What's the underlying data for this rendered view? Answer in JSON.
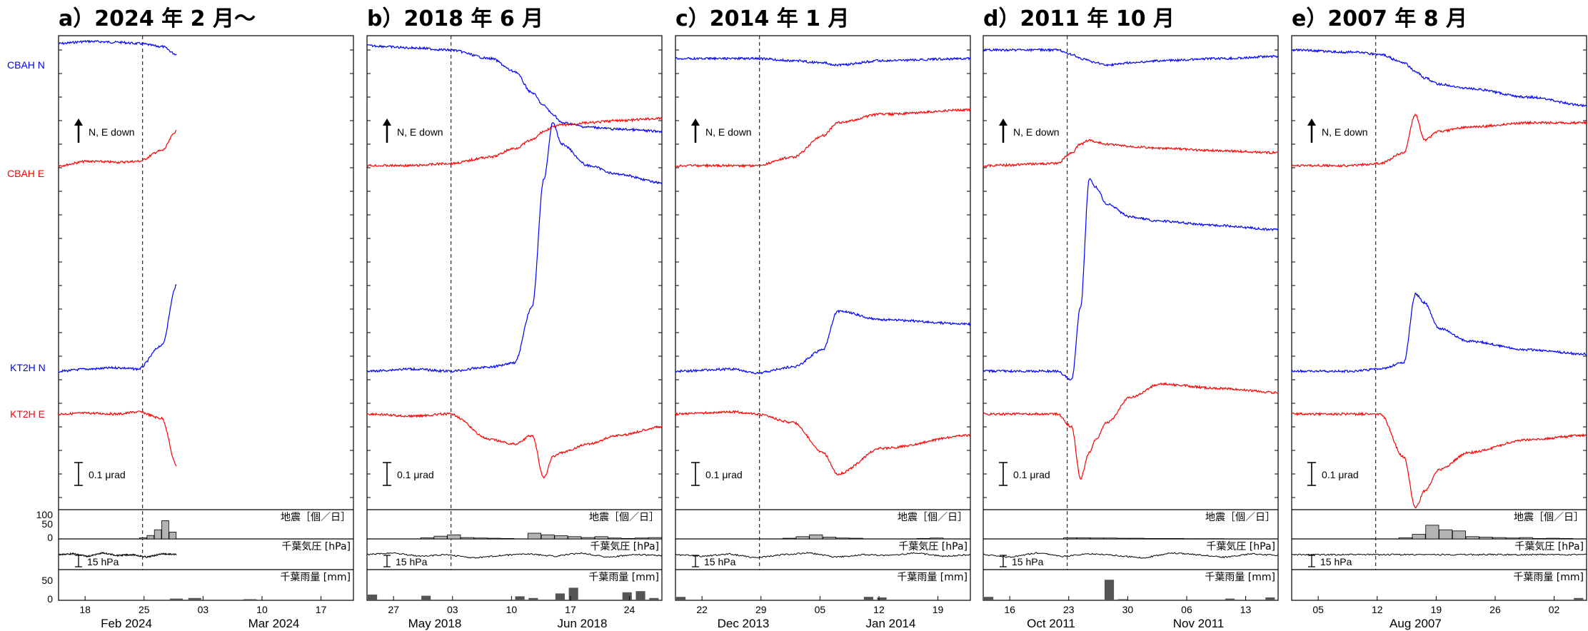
{
  "colors": {
    "north": "#0000ff",
    "east": "#ff0000",
    "bar_eq": "#b3b3b3",
    "bar_rain": "#555555"
  },
  "side_labels": {
    "cbah_n": "CBAH N",
    "cbah_e": "CBAH E",
    "kt2h_n": "KT2H N",
    "kt2h_e": "KT2H E"
  },
  "common": {
    "arrow_label": "N, E down",
    "scale_label": "0.1 μrad",
    "pressure_scale": "15 hPa",
    "eq_title": "地震［個／日］",
    "pressure_title": "千葉気圧 [hPa]",
    "rain_title": "千葉雨量 [mm]",
    "eq_axis": [
      "100",
      "50",
      "0"
    ],
    "rain_axis": [
      "50",
      "0"
    ]
  },
  "chart_data": [
    {
      "type": "line",
      "title": "a）2024 年 2 月～",
      "x": [
        0,
        0.1,
        0.2,
        0.27,
        0.35,
        0.4
      ],
      "day_ticks": [
        "18",
        "25",
        "03",
        "10",
        "17"
      ],
      "month_labels": [
        "Feb 2024",
        "Mar 2024"
      ],
      "onset": 0.285,
      "series": [
        {
          "name": "CBAH N",
          "values": [
            0.45,
            0.5,
            0.48,
            0.45,
            0.38,
            0.2
          ]
        },
        {
          "name": "CBAH E",
          "values": [
            0.0,
            0.1,
            0.08,
            0.1,
            0.35,
            0.8
          ]
        },
        {
          "name": "KT2H N",
          "values": [
            0.0,
            0.05,
            0.08,
            0.05,
            0.6,
            2.0
          ]
        },
        {
          "name": "KT2H E",
          "values": [
            0.0,
            0.02,
            0.0,
            0.05,
            -0.1,
            -1.2
          ]
        }
      ],
      "earthquakes": [
        0,
        0,
        0,
        0,
        0,
        0,
        0,
        0,
        0,
        0,
        0,
        5,
        15,
        40,
        80,
        30
      ],
      "pressure": [
        0.5,
        0.55,
        0.4,
        0.6,
        0.45,
        0.5,
        0.35,
        0.55,
        0.5
      ],
      "rain": [
        0,
        0,
        0,
        0,
        0,
        0,
        3,
        4,
        0,
        0,
        2,
        0,
        0,
        0,
        0,
        0
      ]
    },
    {
      "type": "line",
      "title": "b）2018 年 6 月",
      "x": [
        0,
        0.15,
        0.28,
        0.42,
        0.5,
        0.56,
        0.6,
        0.63,
        0.66,
        0.75,
        0.85,
        1.0
      ],
      "day_ticks": [
        "27",
        "03",
        "10",
        "17",
        "24"
      ],
      "month_labels": [
        "May 2018",
        "Jun 2018"
      ],
      "onset": 0.285,
      "series": [
        {
          "name": "CBAH N",
          "values": [
            0.4,
            0.35,
            0.3,
            0.1,
            -0.2,
            -0.7,
            -1.0,
            -1.2,
            -1.4,
            -1.5,
            -1.55,
            -1.6
          ]
        },
        {
          "name": "CBAH E",
          "values": [
            0.0,
            0.0,
            0.05,
            0.2,
            0.4,
            0.6,
            0.8,
            0.9,
            0.95,
            1.0,
            1.05,
            1.1
          ]
        },
        {
          "name": "KT2H N",
          "values": [
            0.0,
            0.05,
            0.0,
            0.1,
            0.2,
            1.5,
            4.5,
            5.8,
            5.3,
            4.8,
            4.6,
            4.4
          ]
        },
        {
          "name": "KT2H E",
          "values": [
            0.0,
            -0.05,
            0.0,
            -0.6,
            -0.7,
            -0.5,
            -1.5,
            -1.0,
            -0.9,
            -0.7,
            -0.5,
            -0.3
          ]
        }
      ],
      "earthquakes": [
        0,
        0,
        0,
        0,
        5,
        12,
        18,
        6,
        4,
        3,
        2,
        0,
        25,
        18,
        14,
        10,
        6,
        10,
        4,
        2,
        4,
        6
      ],
      "pressure": [
        0.5,
        0.6,
        0.4,
        0.5,
        0.3,
        0.45,
        0.55,
        0.4,
        0.6,
        0.35,
        0.5,
        0.45
      ],
      "rain": [
        10,
        0,
        0,
        0,
        8,
        0,
        0,
        0,
        0,
        0,
        0,
        7,
        4,
        0,
        12,
        22,
        0,
        0,
        0,
        14,
        16,
        4
      ]
    },
    {
      "type": "line",
      "title": "c）2014 年 1 月",
      "x": [
        0,
        0.2,
        0.27,
        0.4,
        0.5,
        0.55,
        0.7,
        1.0
      ],
      "day_ticks": [
        "22",
        "29",
        "05",
        "12",
        "19"
      ],
      "month_labels": [
        "Dec 2013",
        "Jan 2014"
      ],
      "onset": 0.285,
      "series": [
        {
          "name": "CBAH N",
          "values": [
            0.1,
            0.1,
            0.1,
            0.05,
            0.0,
            -0.05,
            0.05,
            0.1
          ]
        },
        {
          "name": "CBAH E",
          "values": [
            0.0,
            0.0,
            0.0,
            0.2,
            0.7,
            1.0,
            1.2,
            1.3
          ]
        },
        {
          "name": "KT2H N",
          "values": [
            0.0,
            0.05,
            -0.05,
            0.1,
            0.5,
            1.4,
            1.2,
            1.1
          ]
        },
        {
          "name": "KT2H E",
          "values": [
            0.0,
            0.05,
            0.0,
            -0.2,
            -0.9,
            -1.4,
            -0.8,
            -0.5
          ]
        }
      ],
      "earthquakes": [
        0,
        0,
        0,
        0,
        0,
        0,
        0,
        0,
        3,
        10,
        18,
        8,
        4,
        3,
        0,
        0,
        0,
        0,
        2,
        4,
        0,
        0
      ],
      "pressure": [
        0.5,
        0.4,
        0.55,
        0.3,
        0.5,
        0.6,
        0.35,
        0.5,
        0.45,
        0.6,
        0.4,
        0.5
      ],
      "rain": [
        6,
        0,
        0,
        0,
        0,
        0,
        0,
        0,
        0,
        0,
        0,
        0,
        0,
        0,
        6,
        5,
        0,
        0,
        0,
        0,
        0,
        0
      ]
    },
    {
      "type": "line",
      "title": "d）2011 年 10 月",
      "x": [
        0,
        0.25,
        0.3,
        0.33,
        0.36,
        0.38,
        0.42,
        0.5,
        0.6,
        0.8,
        1.0
      ],
      "day_ticks": [
        "16",
        "23",
        "30",
        "06",
        "13"
      ],
      "month_labels": [
        "Oct 2011",
        "Nov 2011"
      ],
      "onset": 0.285,
      "series": [
        {
          "name": "CBAH N",
          "values": [
            0.3,
            0.3,
            0.2,
            0.1,
            0.05,
            0.0,
            -0.05,
            0.0,
            0.05,
            0.1,
            0.15
          ]
        },
        {
          "name": "CBAH E",
          "values": [
            0.0,
            0.05,
            0.3,
            0.5,
            0.6,
            0.55,
            0.5,
            0.45,
            0.4,
            0.35,
            0.3
          ]
        },
        {
          "name": "KT2H N",
          "values": [
            0.0,
            0.0,
            -0.2,
            1.5,
            4.5,
            4.3,
            3.9,
            3.6,
            3.5,
            3.4,
            3.3
          ]
        },
        {
          "name": "KT2H E",
          "values": [
            0.0,
            0.0,
            -0.3,
            -1.5,
            -0.9,
            -0.6,
            -0.2,
            0.4,
            0.7,
            0.6,
            0.5
          ]
        }
      ],
      "earthquakes": [
        0,
        0,
        0,
        0,
        0,
        0,
        5,
        5,
        4,
        4,
        3,
        3,
        2,
        2,
        2,
        1,
        1,
        1,
        0,
        0,
        0,
        0
      ],
      "pressure": [
        0.5,
        0.35,
        0.6,
        0.4,
        0.55,
        0.45,
        0.3,
        0.6,
        0.5,
        0.35,
        0.55,
        0.45
      ],
      "rain": [
        6,
        0,
        0,
        0,
        0,
        0,
        0,
        0,
        0,
        36,
        2,
        0,
        0,
        0,
        0,
        0,
        0,
        0,
        3,
        0,
        0,
        5
      ]
    },
    {
      "type": "line",
      "title": "e）2007 年 8 月",
      "x": [
        0,
        0.2,
        0.3,
        0.38,
        0.42,
        0.45,
        0.5,
        0.6,
        0.8,
        1.0
      ],
      "day_ticks": [
        "05",
        "12",
        "19",
        "26",
        "02"
      ],
      "month_labels": [
        "Aug 2007"
      ],
      "onset": 0.285,
      "series": [
        {
          "name": "CBAH N",
          "values": [
            0.3,
            0.25,
            0.2,
            0.0,
            -0.2,
            -0.35,
            -0.5,
            -0.6,
            -0.8,
            -1.0
          ]
        },
        {
          "name": "CBAH E",
          "values": [
            0.0,
            0.0,
            0.05,
            0.3,
            1.2,
            0.6,
            0.8,
            0.9,
            1.0,
            1.0
          ]
        },
        {
          "name": "KT2H N",
          "values": [
            0.0,
            0.0,
            0.05,
            0.2,
            1.8,
            1.6,
            1.0,
            0.7,
            0.5,
            0.4
          ]
        },
        {
          "name": "KT2H E",
          "values": [
            0.0,
            0.0,
            0.0,
            -1.0,
            -2.2,
            -1.8,
            -1.3,
            -0.9,
            -0.6,
            -0.5
          ]
        }
      ],
      "earthquakes": [
        0,
        0,
        0,
        0,
        0,
        0,
        0,
        0,
        5,
        20,
        60,
        40,
        35,
        10,
        8,
        6,
        4,
        6,
        2,
        3,
        2,
        0
      ],
      "pressure": [
        0.5,
        0.5,
        0.5,
        0.5,
        0.5,
        0.5,
        0.5,
        0.5,
        0.5,
        0.5,
        0.5,
        0.5
      ],
      "rain": [
        0,
        0,
        0,
        0,
        0,
        0,
        0,
        0,
        0,
        0,
        0,
        0,
        0,
        0,
        0,
        0,
        0,
        0,
        0,
        0,
        0,
        4
      ]
    }
  ]
}
